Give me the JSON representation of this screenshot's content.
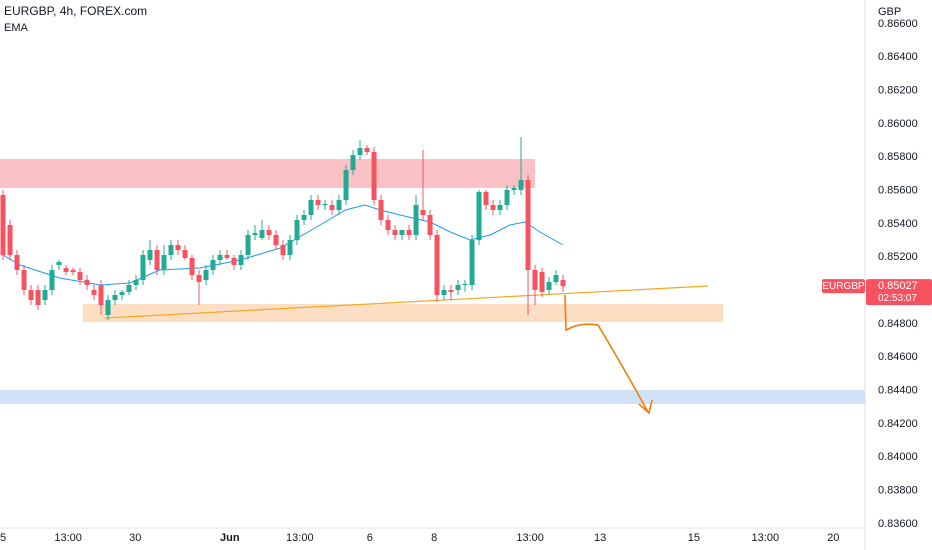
{
  "chart_data": {
    "type": "candlestick",
    "title": "EURGBP, 4h, FOREX.com",
    "subtitle": "EMA",
    "y_axis_label": "GBP",
    "up_color": "#22ab94",
    "down_color": "#f7525f",
    "xlim": [
      -0.43,
      123.14
    ],
    "ylim": [
      0.83576,
      0.86744
    ],
    "grid": false,
    "yticks": [
      {
        "value": 0.866,
        "label": "0.86600"
      },
      {
        "value": 0.864,
        "label": "0.86400"
      },
      {
        "value": 0.862,
        "label": "0.86200"
      },
      {
        "value": 0.86,
        "label": "0.86000"
      },
      {
        "value": 0.858,
        "label": "0.85800"
      },
      {
        "value": 0.856,
        "label": "0.85600"
      },
      {
        "value": 0.854,
        "label": "0.85400"
      },
      {
        "value": 0.852,
        "label": "0.85200"
      },
      {
        "value": 0.85,
        "label": "0.85000"
      },
      {
        "value": 0.848,
        "label": "0.84800"
      },
      {
        "value": 0.846,
        "label": "0.84600"
      },
      {
        "value": 0.844,
        "label": "0.84400"
      },
      {
        "value": 0.842,
        "label": "0.84200"
      },
      {
        "value": 0.84,
        "label": "0.84000"
      },
      {
        "value": 0.838,
        "label": "0.83800"
      },
      {
        "value": 0.836,
        "label": "0.83600"
      }
    ],
    "xticks": [
      {
        "value": 0,
        "label": "5"
      },
      {
        "value": 9.3,
        "label": "13:00"
      },
      {
        "value": 18.9,
        "label": "30"
      },
      {
        "value": 32.4,
        "label": "Jun"
      },
      {
        "value": 42.4,
        "label": "13:00"
      },
      {
        "value": 52.4,
        "label": "6"
      },
      {
        "value": 61.6,
        "label": "8"
      },
      {
        "value": 75.3,
        "label": "13:00"
      },
      {
        "value": 85.3,
        "label": "13"
      },
      {
        "value": 98.7,
        "label": "15"
      },
      {
        "value": 108.9,
        "label": "13:00"
      },
      {
        "value": 118.6,
        "label": "20"
      }
    ],
    "x": [
      0,
      1,
      2,
      3,
      4,
      5,
      6,
      7,
      8,
      9,
      10,
      11,
      12,
      13,
      14,
      15,
      16,
      17,
      18,
      19,
      20,
      21,
      22,
      23,
      24,
      25,
      26,
      27,
      28,
      29,
      30,
      31,
      32,
      33,
      34,
      35,
      36,
      37,
      38,
      39,
      40,
      41,
      42,
      43,
      44,
      45,
      46,
      47,
      48,
      49,
      50,
      51,
      52,
      53,
      54,
      55,
      56,
      57,
      58,
      59,
      60,
      61,
      62,
      63,
      64,
      65,
      66,
      67,
      68,
      69,
      70,
      71,
      72,
      73,
      74,
      75,
      76,
      77,
      78,
      79,
      80
    ],
    "candles": [
      [
        0.85574,
        0.85604,
        0.85184,
        0.85214
      ],
      [
        0.85394,
        0.85424,
        0.85184,
        0.85214
      ],
      [
        0.85214,
        0.85244,
        0.85094,
        0.85124
      ],
      [
        0.85124,
        0.85154,
        0.84974,
        0.85004
      ],
      [
        0.85004,
        0.85034,
        0.84914,
        0.84944
      ],
      [
        0.85004,
        0.85034,
        0.84884,
        0.84914
      ],
      [
        0.84944,
        0.85034,
        0.84914,
        0.85004
      ],
      [
        0.85004,
        0.85154,
        0.84974,
        0.85124
      ],
      [
        0.85154,
        0.85184,
        0.85124,
        0.85172
      ],
      [
        0.85136,
        0.85154,
        0.85094,
        0.85112
      ],
      [
        0.85124,
        0.85136,
        0.85094,
        0.85112
      ],
      [
        0.85112,
        0.85136,
        0.85034,
        0.85064
      ],
      [
        0.85064,
        0.85094,
        0.85004,
        0.85034
      ],
      [
        0.85004,
        0.85034,
        0.84944,
        0.84974
      ],
      [
        0.85034,
        0.85064,
        0.84854,
        0.84914
      ],
      [
        0.84854,
        0.84974,
        0.84824,
        0.84944
      ],
      [
        0.84944,
        0.85004,
        0.84914,
        0.84974
      ],
      [
        0.84974,
        0.85004,
        0.84944,
        0.84992
      ],
      [
        0.84992,
        0.85064,
        0.84974,
        0.85034
      ],
      [
        0.85034,
        0.85094,
        0.85004,
        0.85064
      ],
      [
        0.85064,
        0.85244,
        0.85034,
        0.85214
      ],
      [
        0.85184,
        0.85304,
        0.85154,
        0.85244
      ],
      [
        0.85244,
        0.85274,
        0.85094,
        0.85124
      ],
      [
        0.85124,
        0.85274,
        0.85094,
        0.85214
      ],
      [
        0.85214,
        0.85304,
        0.85184,
        0.85274
      ],
      [
        0.85274,
        0.85304,
        0.85214,
        0.85244
      ],
      [
        0.85244,
        0.85274,
        0.85184,
        0.85196
      ],
      [
        0.85196,
        0.85214,
        0.85064,
        0.85094
      ],
      [
        0.85094,
        0.85124,
        0.84914,
        0.85052
      ],
      [
        0.85064,
        0.85154,
        0.85034,
        0.85124
      ],
      [
        0.85124,
        0.85214,
        0.85094,
        0.85184
      ],
      [
        0.85184,
        0.85244,
        0.85154,
        0.85214
      ],
      [
        0.85214,
        0.85244,
        0.85184,
        0.85196
      ],
      [
        0.85196,
        0.85214,
        0.85124,
        0.85154
      ],
      [
        0.85154,
        0.85244,
        0.85124,
        0.85214
      ],
      [
        0.85214,
        0.85364,
        0.85184,
        0.85334
      ],
      [
        0.85334,
        0.85394,
        0.85304,
        0.85346
      ],
      [
        0.85316,
        0.85424,
        0.85304,
        0.85364
      ],
      [
        0.85364,
        0.85394,
        0.85304,
        0.85334
      ],
      [
        0.85334,
        0.85364,
        0.85244,
        0.85274
      ],
      [
        0.85274,
        0.85304,
        0.85184,
        0.85214
      ],
      [
        0.85214,
        0.85334,
        0.85184,
        0.85304
      ],
      [
        0.85304,
        0.85454,
        0.85274,
        0.85424
      ],
      [
        0.85424,
        0.85484,
        0.85394,
        0.85454
      ],
      [
        0.85454,
        0.85574,
        0.85424,
        0.85544
      ],
      [
        0.85544,
        0.85574,
        0.85484,
        0.85514
      ],
      [
        0.85514,
        0.85544,
        0.85484,
        0.8552
      ],
      [
        0.85514,
        0.85544,
        0.85454,
        0.85484
      ],
      [
        0.85484,
        0.85574,
        0.85454,
        0.85544
      ],
      [
        0.85544,
        0.85754,
        0.85514,
        0.85724
      ],
      [
        0.85724,
        0.85844,
        0.85694,
        0.85814
      ],
      [
        0.85814,
        0.85904,
        0.85784,
        0.85856
      ],
      [
        0.85856,
        0.85874,
        0.85814,
        0.85832
      ],
      [
        0.85832,
        0.85862,
        0.85514,
        0.85544
      ],
      [
        0.85544,
        0.85574,
        0.85394,
        0.85424
      ],
      [
        0.85424,
        0.85454,
        0.85334,
        0.85364
      ],
      [
        0.85364,
        0.85394,
        0.85304,
        0.85334
      ],
      [
        0.85334,
        0.85364,
        0.85304,
        0.85364
      ],
      [
        0.85364,
        0.85394,
        0.85304,
        0.85334
      ],
      [
        0.85334,
        0.85574,
        0.85304,
        0.85514
      ],
      [
        0.85484,
        0.85844,
        0.85424,
        0.85454
      ],
      [
        0.85454,
        0.85484,
        0.85304,
        0.85334
      ],
      [
        0.85334,
        0.85364,
        0.84932,
        0.84974
      ],
      [
        0.84974,
        0.85034,
        0.84944,
        0.85004
      ],
      [
        0.85004,
        0.85034,
        0.84944,
        0.84992
      ],
      [
        0.85004,
        0.85064,
        0.84974,
        0.85034
      ],
      [
        0.85034,
        0.85064,
        0.84992,
        0.8504
      ],
      [
        0.85034,
        0.85334,
        0.85004,
        0.85304
      ],
      [
        0.85304,
        0.85604,
        0.85274,
        0.85592
      ],
      [
        0.85592,
        0.85604,
        0.85484,
        0.85514
      ],
      [
        0.85514,
        0.85544,
        0.85454,
        0.85484
      ],
      [
        0.85484,
        0.85544,
        0.85454,
        0.85514
      ],
      [
        0.85514,
        0.85634,
        0.85484,
        0.85604
      ],
      [
        0.85604,
        0.85634,
        0.85574,
        0.85616
      ],
      [
        0.85604,
        0.85922,
        0.85574,
        0.85664
      ],
      [
        0.85664,
        0.85694,
        0.84854,
        0.85124
      ],
      [
        0.85124,
        0.85154,
        0.84914,
        0.85004
      ],
      [
        0.85112,
        0.85136,
        0.84962,
        0.84992
      ],
      [
        0.85004,
        0.85082,
        0.84974,
        0.85052
      ],
      [
        0.85052,
        0.85124,
        0.85034,
        0.85094
      ],
      [
        0.85064,
        0.85094,
        0.84992,
        0.85027
      ]
    ],
    "ema": {
      "color": "#2196f3",
      "x": [
        0,
        2.4,
        8.1,
        13.9,
        18.1,
        22.4,
        28.1,
        33.9,
        39.6,
        45.3,
        48.9,
        51.7,
        53.9,
        56.7,
        61,
        63.9,
        66.7,
        69.6,
        72.4,
        74.6,
        76.7,
        80
      ],
      "values": [
        0.85214,
        0.85154,
        0.85076,
        0.85034,
        0.85046,
        0.85124,
        0.85136,
        0.85184,
        0.85256,
        0.85394,
        0.85484,
        0.85514,
        0.85484,
        0.85454,
        0.85412,
        0.85352,
        0.85304,
        0.85334,
        0.85394,
        0.85412,
        0.85352,
        0.85274
      ]
    },
    "zones": [
      {
        "color": "#f9b7bc",
        "xlim": [
          -0.43,
          76
        ],
        "ylim": [
          0.85616,
          0.8579
        ]
      },
      {
        "color": "#fcd9b8",
        "xlim": [
          11.4,
          102.9
        ],
        "ylim": [
          0.84812,
          0.8492
        ]
      },
      {
        "color": "#c8dcf7",
        "xlim": [
          -0.43,
          123.14
        ],
        "ylim": [
          0.8432,
          0.84404
        ]
      }
    ],
    "trendline": {
      "color": "#f5a623",
      "x": [
        14.6,
        100.7
      ],
      "values": [
        0.84836,
        0.85028
      ]
    },
    "symbol_label": "EURGBP",
    "countdown": "02:53:07"
  }
}
